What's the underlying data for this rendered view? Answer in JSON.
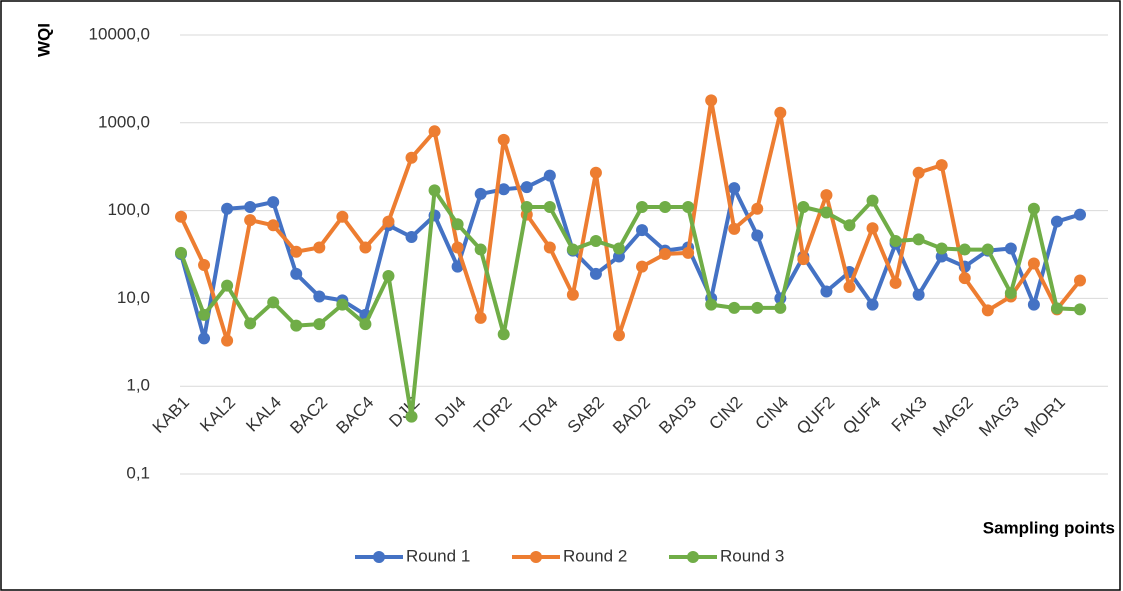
{
  "chart_data": {
    "type": "line",
    "y_label": "WQI",
    "x_label": "Sampling points",
    "categories": [
      "KAB1",
      null,
      "KAL2",
      null,
      "KAL4",
      null,
      "BAC2",
      null,
      "BAC4",
      null,
      "DJI2",
      null,
      "DJI4",
      null,
      "TOR2",
      null,
      "TOR4",
      null,
      "SAB2",
      null,
      "BAD2",
      null,
      "BAD3",
      null,
      "CIN2",
      null,
      "CIN4",
      null,
      "QUF2",
      null,
      "QUF4",
      null,
      "FAK3",
      null,
      "MAG2",
      null,
      "MAG3",
      null,
      "MOR1",
      null
    ],
    "series": [
      {
        "name": "Round 1",
        "color": "#4472c4",
        "values": [
          32,
          3.5,
          105,
          110,
          125,
          19,
          10.5,
          9.5,
          6.5,
          68,
          50,
          88,
          23,
          155,
          175,
          185,
          250,
          35,
          19,
          30,
          60,
          35,
          38,
          10,
          180,
          52,
          10,
          30,
          12,
          20,
          8.5,
          42,
          11,
          30,
          23,
          35,
          37,
          8.5,
          75,
          90
        ]
      },
      {
        "name": "Round 2",
        "color": "#ed7d31",
        "values": [
          85,
          24,
          3.3,
          78,
          68,
          34,
          38,
          85,
          38,
          75,
          400,
          800,
          38,
          6,
          640,
          90,
          38,
          11,
          270,
          3.8,
          23,
          32,
          33,
          1800,
          62,
          105,
          1300,
          28,
          150,
          13.5,
          63,
          15,
          270,
          330,
          17,
          7.3,
          10.5,
          25,
          7.5,
          16
        ]
      },
      {
        "name": "Round 3",
        "color": "#70ad47",
        "values": [
          33,
          6.5,
          14,
          5.2,
          9,
          4.9,
          5.1,
          8.5,
          5.1,
          18,
          0.45,
          170,
          70,
          36,
          3.9,
          110,
          110,
          36,
          45,
          37,
          110,
          110,
          110,
          8.5,
          7.8,
          7.8,
          7.8,
          110,
          95,
          68,
          130,
          45,
          47,
          37,
          36,
          36,
          11.5,
          105,
          7.7,
          7.5
        ]
      }
    ],
    "log_scale": true,
    "ylim": [
      0.1,
      10000
    ],
    "yticks": [
      {
        "value": 0.1,
        "label": "0,1"
      },
      {
        "value": 1,
        "label": "1,0"
      },
      {
        "value": 10,
        "label": "10,0"
      },
      {
        "value": 100,
        "label": "100,0"
      },
      {
        "value": 1000,
        "label": "1000,0"
      },
      {
        "value": 10000,
        "label": "10000,0"
      }
    ],
    "grid": true,
    "legend": "bottom"
  }
}
